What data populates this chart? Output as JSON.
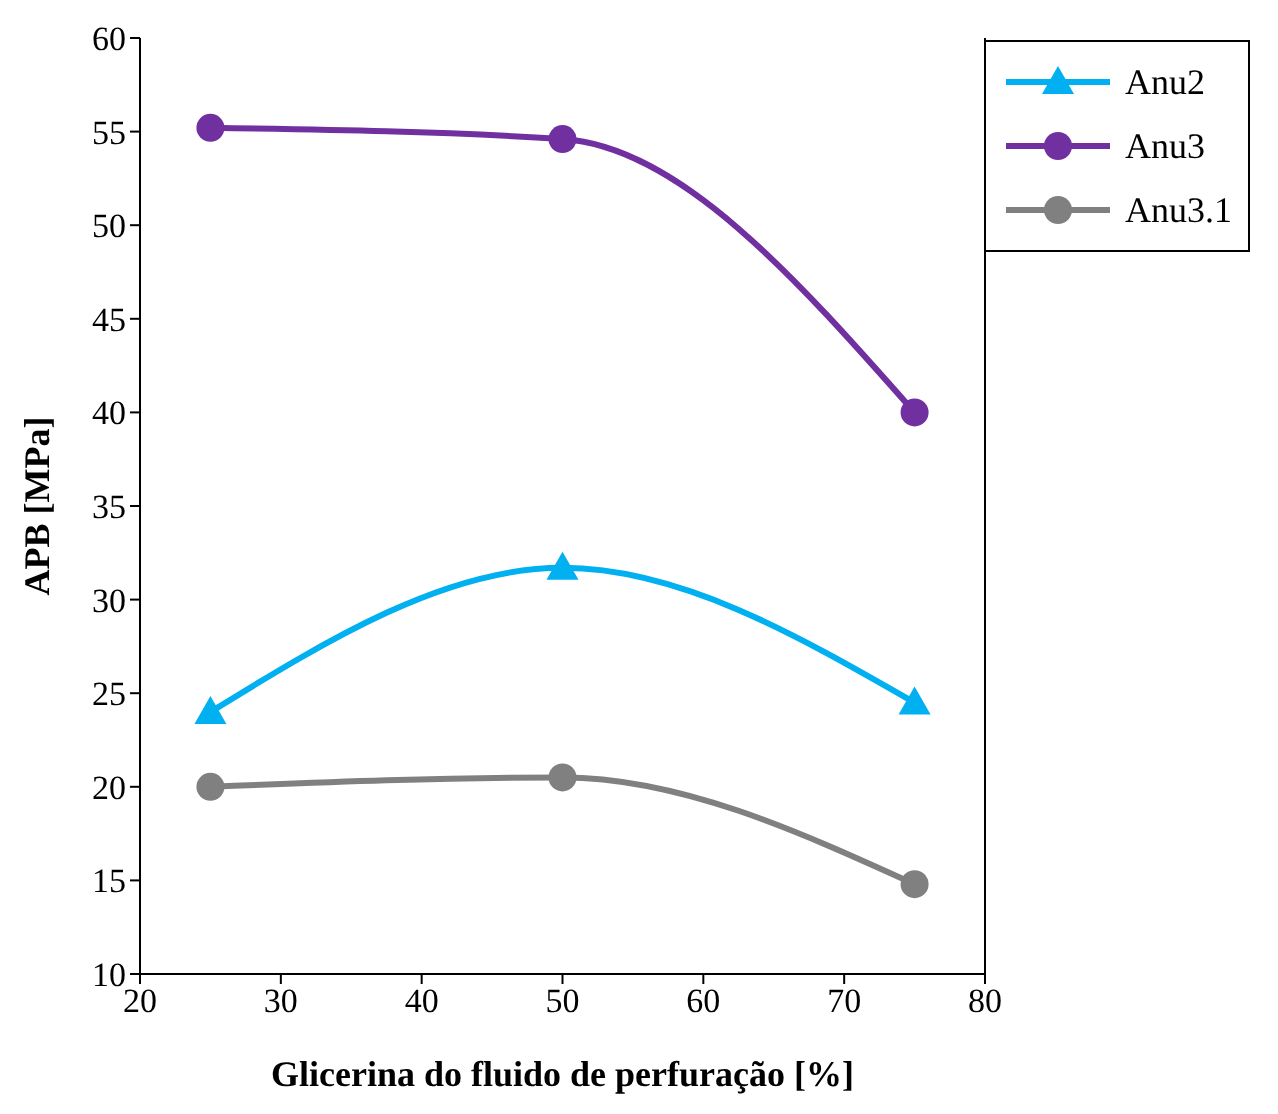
{
  "chart_data": {
    "type": "line",
    "xlabel": "Glicerina do fluido de perfuração [%]",
    "ylabel": "APB [MPa]",
    "x": [
      25,
      50,
      75
    ],
    "series": [
      {
        "name": "Anu2",
        "color": "#00b0f0",
        "marker": "triangle",
        "values": [
          24,
          31.7,
          24.5
        ]
      },
      {
        "name": "Anu3",
        "color": "#7030a0",
        "marker": "circle",
        "values": [
          55.2,
          54.6,
          40
        ]
      },
      {
        "name": "Anu3.1",
        "color": "#808080",
        "marker": "circle",
        "values": [
          20,
          20.5,
          14.8
        ]
      }
    ],
    "xlim": [
      20,
      80
    ],
    "xticks": [
      20,
      30,
      40,
      50,
      60,
      70,
      80
    ],
    "ylim": [
      10,
      60
    ],
    "yticks": [
      10,
      15,
      20,
      25,
      30,
      35,
      40,
      45,
      50,
      55,
      60
    ],
    "grid": false,
    "legend": "top right"
  }
}
